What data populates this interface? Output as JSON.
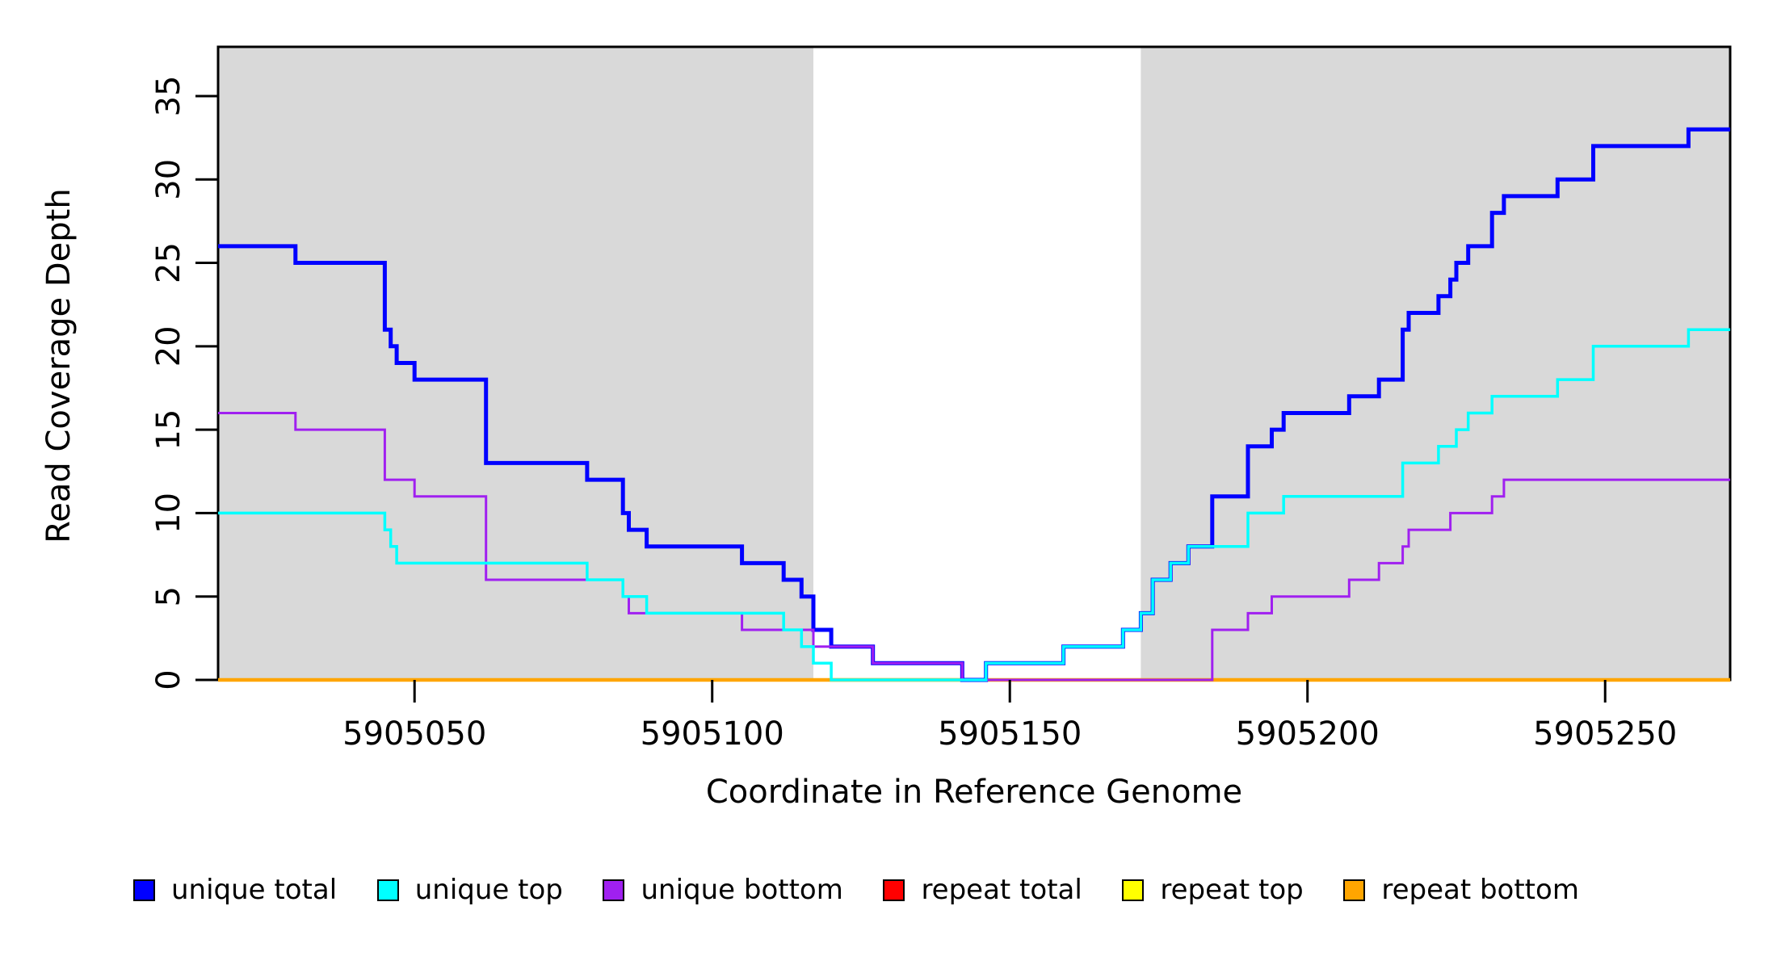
{
  "chart_data": {
    "type": "line",
    "subtype": "step",
    "title": "",
    "xlabel": "Coordinate in Reference Genome",
    "ylabel": "Read Coverage Depth",
    "xlim": [
      5905017,
      5905271
    ],
    "ylim": [
      0,
      37.95
    ],
    "x_ticks": [
      5905050,
      5905100,
      5905150,
      5905200,
      5905250
    ],
    "y_ticks": [
      0,
      5,
      10,
      15,
      20,
      25,
      30,
      35
    ],
    "grid": false,
    "background_color": "#ffffff",
    "shaded_regions": [
      {
        "x0": 5905017,
        "x1": 5905117,
        "color": "#D9D9D9"
      },
      {
        "x0": 5905172,
        "x1": 5905271,
        "color": "#D9D9D9"
      }
    ],
    "series": [
      {
        "name": "unique total",
        "color": "#0000FF",
        "width": 5,
        "start": 26,
        "changes": [
          [
            5905030,
            25
          ],
          [
            5905045,
            21
          ],
          [
            5905046,
            20
          ],
          [
            5905047,
            19
          ],
          [
            5905050,
            18
          ],
          [
            5905062,
            13
          ],
          [
            5905079,
            12
          ],
          [
            5905085,
            10
          ],
          [
            5905086,
            9
          ],
          [
            5905089,
            8
          ],
          [
            5905105,
            7
          ],
          [
            5905112,
            6
          ],
          [
            5905115,
            5
          ],
          [
            5905117,
            3
          ],
          [
            5905120,
            2
          ],
          [
            5905127,
            1
          ],
          [
            5905142,
            0
          ],
          [
            5905146,
            1
          ],
          [
            5905159,
            2
          ],
          [
            5905169,
            3
          ],
          [
            5905172,
            4
          ],
          [
            5905174,
            6
          ],
          [
            5905177,
            7
          ],
          [
            5905180,
            8
          ],
          [
            5905184,
            11
          ],
          [
            5905190,
            14
          ],
          [
            5905194,
            15
          ],
          [
            5905196,
            16
          ],
          [
            5905207,
            17
          ],
          [
            5905212,
            18
          ],
          [
            5905216,
            21
          ],
          [
            5905217,
            22
          ],
          [
            5905222,
            23
          ],
          [
            5905224,
            24
          ],
          [
            5905225,
            25
          ],
          [
            5905227,
            26
          ],
          [
            5905231,
            28
          ],
          [
            5905233,
            29
          ],
          [
            5905242,
            30
          ],
          [
            5905248,
            32
          ],
          [
            5905264,
            33
          ]
        ]
      },
      {
        "name": "unique top",
        "color": "#00FFFF",
        "width": 3.5,
        "start": 10,
        "changes": [
          [
            5905045,
            9
          ],
          [
            5905046,
            8
          ],
          [
            5905047,
            7
          ],
          [
            5905079,
            6
          ],
          [
            5905085,
            5
          ],
          [
            5905089,
            4
          ],
          [
            5905112,
            3
          ],
          [
            5905115,
            2
          ],
          [
            5905117,
            1
          ],
          [
            5905120,
            0
          ],
          [
            5905146,
            1
          ],
          [
            5905159,
            2
          ],
          [
            5905169,
            3
          ],
          [
            5905172,
            4
          ],
          [
            5905174,
            6
          ],
          [
            5905177,
            7
          ],
          [
            5905180,
            8
          ],
          [
            5905190,
            10
          ],
          [
            5905196,
            11
          ],
          [
            5905216,
            13
          ],
          [
            5905222,
            14
          ],
          [
            5905225,
            15
          ],
          [
            5905227,
            16
          ],
          [
            5905231,
            17
          ],
          [
            5905242,
            18
          ],
          [
            5905248,
            20
          ],
          [
            5905264,
            21
          ]
        ]
      },
      {
        "name": "unique bottom",
        "color": "#A020F0",
        "width": 3,
        "start": 16,
        "changes": [
          [
            5905030,
            15
          ],
          [
            5905045,
            12
          ],
          [
            5905050,
            11
          ],
          [
            5905062,
            6
          ],
          [
            5905085,
            5
          ],
          [
            5905086,
            4
          ],
          [
            5905105,
            3
          ],
          [
            5905117,
            2
          ],
          [
            5905127,
            1
          ],
          [
            5905142,
            0
          ],
          [
            5905184,
            3
          ],
          [
            5905190,
            4
          ],
          [
            5905194,
            5
          ],
          [
            5905207,
            6
          ],
          [
            5905212,
            7
          ],
          [
            5905216,
            8
          ],
          [
            5905217,
            9
          ],
          [
            5905224,
            10
          ],
          [
            5905231,
            11
          ],
          [
            5905233,
            12
          ]
        ]
      },
      {
        "name": "repeat total",
        "color": "#FF0000",
        "width": 3,
        "start": 0,
        "changes": []
      },
      {
        "name": "repeat top",
        "color": "#FFFF00",
        "width": 3,
        "start": 0,
        "changes": []
      },
      {
        "name": "repeat bottom",
        "color": "#FFA500",
        "width": 4.5,
        "start": 0,
        "changes": []
      }
    ],
    "draw_order": [
      "repeat total",
      "repeat top",
      "repeat bottom",
      "unique total",
      "unique bottom",
      "unique top"
    ],
    "legend": {
      "position": "bottom",
      "items": [
        {
          "label": "unique total",
          "color": "#0000FF"
        },
        {
          "label": "unique top",
          "color": "#00FFFF"
        },
        {
          "label": "unique bottom",
          "color": "#A020F0"
        },
        {
          "label": "repeat total",
          "color": "#FF0000"
        },
        {
          "label": "repeat top",
          "color": "#FFFF00"
        },
        {
          "label": "repeat bottom",
          "color": "#FFA500"
        }
      ]
    },
    "axis_color": "#000000",
    "tick_length": 28
  }
}
